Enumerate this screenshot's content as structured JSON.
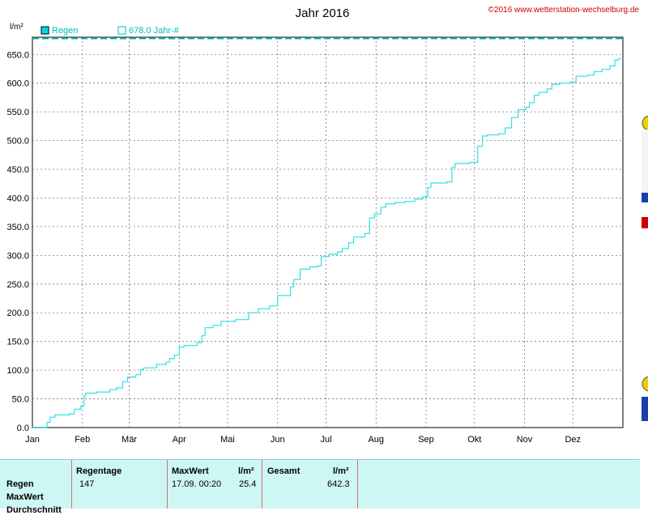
{
  "header": {
    "title": "Jahr 2016",
    "copyright": "©2016 www.wetterstation-wechselburg.de",
    "unit_label": "l/m²"
  },
  "legend": [
    {
      "label": "Regen",
      "color": "#00bcbc",
      "filled": true
    },
    {
      "label": "678.0 Jahr-#",
      "color": "#00bcbc",
      "filled": false
    }
  ],
  "chart_data": {
    "type": "line",
    "x_type": "date",
    "year": 2016,
    "xlim": [
      "2016-01-01",
      "2016-12-31"
    ],
    "x_tick_labels": [
      "Jan",
      "Feb",
      "Mär",
      "Apr",
      "Mai",
      "Jun",
      "Jul",
      "Aug",
      "Sep",
      "Okt",
      "Nov",
      "Dez"
    ],
    "ylim": [
      0,
      680
    ],
    "y_ticks": [
      0.0,
      50.0,
      100.0,
      150.0,
      200.0,
      250.0,
      300.0,
      350.0,
      400.0,
      450.0,
      500.0,
      550.0,
      600.0,
      650.0
    ],
    "y_tick_labels": [
      "0.0",
      "50.0",
      "100.0",
      "150.0",
      "200.0",
      "250.0",
      "300.0",
      "350.0",
      "400.0",
      "450.0",
      "500.0",
      "550.0",
      "600.0",
      "650.0"
    ],
    "ylabel": "l/m²",
    "grid": true,
    "legend_position": "top-left",
    "series": [
      {
        "name": "Regen",
        "color": "#33e0e0",
        "step": true,
        "points": [
          [
            "2016-01-01",
            0
          ],
          [
            "2016-01-08",
            0
          ],
          [
            "2016-01-10",
            9
          ],
          [
            "2016-01-12",
            18
          ],
          [
            "2016-01-15",
            22
          ],
          [
            "2016-01-24",
            24
          ],
          [
            "2016-01-27",
            32
          ],
          [
            "2016-01-31",
            38
          ],
          [
            "2016-02-02",
            55
          ],
          [
            "2016-02-03",
            60
          ],
          [
            "2016-02-10",
            62
          ],
          [
            "2016-02-18",
            66
          ],
          [
            "2016-02-22",
            69
          ],
          [
            "2016-02-26",
            80
          ],
          [
            "2016-02-29",
            88
          ],
          [
            "2016-03-05",
            92
          ],
          [
            "2016-03-08",
            101
          ],
          [
            "2016-03-10",
            104
          ],
          [
            "2016-03-18",
            110
          ],
          [
            "2016-03-24",
            114
          ],
          [
            "2016-03-26",
            120
          ],
          [
            "2016-03-29",
            126
          ],
          [
            "2016-04-01",
            140
          ],
          [
            "2016-04-04",
            143
          ],
          [
            "2016-04-12",
            148
          ],
          [
            "2016-04-15",
            160
          ],
          [
            "2016-04-17",
            174
          ],
          [
            "2016-04-22",
            178
          ],
          [
            "2016-04-27",
            185
          ],
          [
            "2016-05-06",
            188
          ],
          [
            "2016-05-14",
            200
          ],
          [
            "2016-05-20",
            207
          ],
          [
            "2016-05-27",
            212
          ],
          [
            "2016-06-01",
            230
          ],
          [
            "2016-06-09",
            245
          ],
          [
            "2016-06-11",
            258
          ],
          [
            "2016-06-15",
            276
          ],
          [
            "2016-06-21",
            280
          ],
          [
            "2016-06-26",
            282
          ],
          [
            "2016-06-28",
            298
          ],
          [
            "2016-07-03",
            302
          ],
          [
            "2016-07-08",
            306
          ],
          [
            "2016-07-11",
            312
          ],
          [
            "2016-07-15",
            322
          ],
          [
            "2016-07-18",
            332
          ],
          [
            "2016-07-25",
            338
          ],
          [
            "2016-07-28",
            365
          ],
          [
            "2016-07-31",
            372
          ],
          [
            "2016-08-04",
            384
          ],
          [
            "2016-08-07",
            390
          ],
          [
            "2016-08-13",
            392
          ],
          [
            "2016-08-19",
            394
          ],
          [
            "2016-08-25",
            398
          ],
          [
            "2016-08-30",
            402
          ],
          [
            "2016-09-02",
            418
          ],
          [
            "2016-09-04",
            426
          ],
          [
            "2016-09-14",
            428
          ],
          [
            "2016-09-17",
            453
          ],
          [
            "2016-09-19",
            460
          ],
          [
            "2016-09-28",
            462
          ],
          [
            "2016-10-03",
            490
          ],
          [
            "2016-10-06",
            508
          ],
          [
            "2016-10-09",
            510
          ],
          [
            "2016-10-16",
            512
          ],
          [
            "2016-10-20",
            522
          ],
          [
            "2016-10-24",
            540
          ],
          [
            "2016-10-28",
            554
          ],
          [
            "2016-11-02",
            558
          ],
          [
            "2016-11-04",
            566
          ],
          [
            "2016-11-07",
            579
          ],
          [
            "2016-11-10",
            584
          ],
          [
            "2016-11-15",
            590
          ],
          [
            "2016-11-18",
            598
          ],
          [
            "2016-11-23",
            600
          ],
          [
            "2016-11-29",
            602
          ],
          [
            "2016-12-03",
            612
          ],
          [
            "2016-12-10",
            614
          ],
          [
            "2016-12-14",
            620
          ],
          [
            "2016-12-19",
            624
          ],
          [
            "2016-12-24",
            630
          ],
          [
            "2016-12-27",
            640
          ],
          [
            "2016-12-29",
            642.3
          ],
          [
            "2016-12-31",
            642.3
          ]
        ]
      },
      {
        "name": "678.0 Jahr-#",
        "color": "#00a8a8",
        "style": "dashed",
        "values_constant": 678.0
      }
    ]
  },
  "stats": {
    "row_labels": [
      "Regen",
      "MaxWert",
      "Durchschnitt"
    ],
    "col_regentage": "Regentage",
    "col_maxwert": "MaxWert",
    "col_unit1": "l/m²",
    "col_gesamt": "Gesamt",
    "col_unit2": "l/m²",
    "regentage": "147",
    "max_date": "17.09.  00:20",
    "max_value": "25.4",
    "gesamt": "642.3"
  }
}
